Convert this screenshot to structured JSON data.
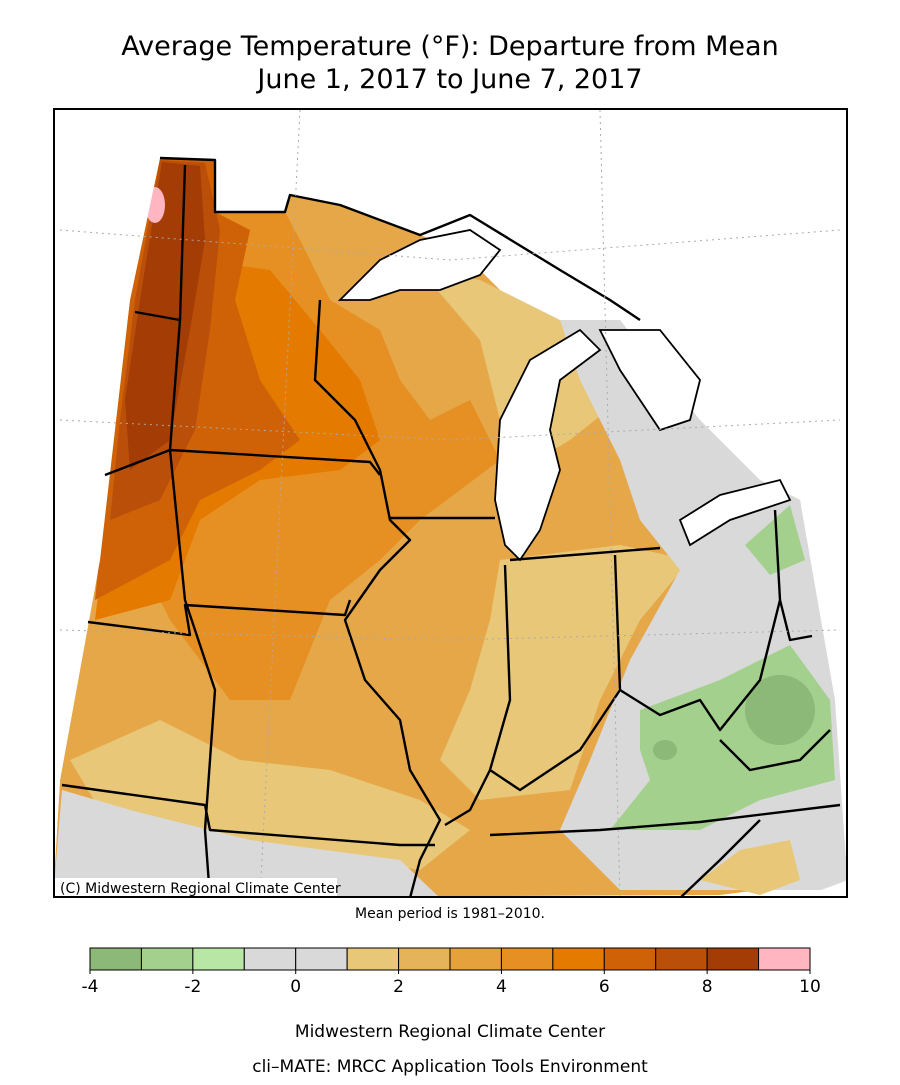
{
  "title": [
    "Average Temperature (°F): Departure from Mean",
    "June 1, 2017 to June 7, 2017"
  ],
  "credit": "(C) Midwestern Regional Climate Center",
  "note": "Mean period is 1981–2010.",
  "legend": {
    "bins": [
      -4,
      -3,
      -2,
      -1,
      0,
      1,
      2,
      3,
      4,
      5,
      6,
      7,
      8,
      9,
      10
    ],
    "colors": [
      "#8cb878",
      "#a3d08c",
      "#b8e6a4",
      "#d9d9d9",
      "#d9d9d9",
      "#e8c878",
      "#e5b35a",
      "#e5a23c",
      "#e68f22",
      "#e57a00",
      "#cf6206",
      "#ba4f0a",
      "#a33c05",
      "#ffb6c1"
    ],
    "ticks": [
      -4,
      -2,
      0,
      2,
      4,
      6,
      8,
      10
    ]
  },
  "footer": [
    "Midwestern Regional Climate Center",
    "cli–MATE: MRCC Application Tools Environment"
  ]
}
